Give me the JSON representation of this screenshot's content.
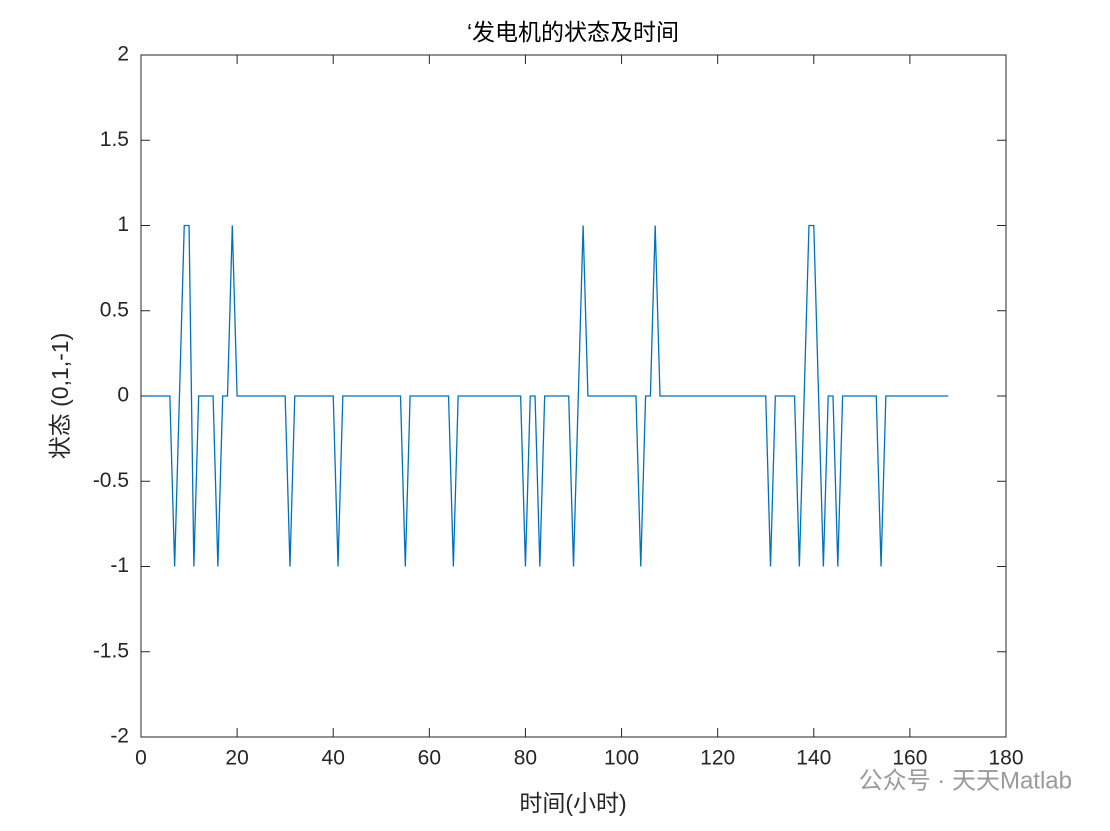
{
  "chart_data": {
    "type": "line",
    "title": "‘发电机的状态及时间",
    "xlabel": "时间(小时)",
    "ylabel": "状态 (0,1,-1)",
    "watermark": "公众号 · 天天Matlab",
    "x": [
      1,
      2,
      3,
      4,
      5,
      6,
      7,
      8,
      9,
      10,
      11,
      12,
      13,
      14,
      15,
      16,
      17,
      18,
      19,
      20,
      21,
      22,
      23,
      24,
      25,
      26,
      27,
      28,
      29,
      30,
      31,
      32,
      33,
      34,
      35,
      36,
      37,
      38,
      39,
      40,
      41,
      42,
      43,
      44,
      45,
      46,
      47,
      48,
      49,
      50,
      51,
      52,
      53,
      54,
      55,
      56,
      57,
      58,
      59,
      60,
      61,
      62,
      63,
      64,
      65,
      66,
      67,
      68,
      69,
      70,
      71,
      72,
      73,
      74,
      75,
      76,
      77,
      78,
      79,
      80,
      81,
      82,
      83,
      84,
      85,
      86,
      87,
      88,
      89,
      90,
      91,
      92,
      93,
      94,
      95,
      96,
      97,
      98,
      99,
      100,
      101,
      102,
      103,
      104,
      105,
      106,
      107,
      108,
      109,
      110,
      111,
      112,
      113,
      114,
      115,
      116,
      117,
      118,
      119,
      120,
      121,
      122,
      123,
      124,
      125,
      126,
      127,
      128,
      129,
      130,
      131,
      132,
      133,
      134,
      135,
      136,
      137,
      138,
      139,
      140,
      141,
      142,
      143,
      144,
      145,
      146,
      147,
      148,
      149,
      150,
      151,
      152,
      153,
      154,
      155,
      156,
      157,
      158,
      159,
      160,
      161,
      162,
      163,
      164,
      165,
      166,
      167,
      168
    ],
    "series": [
      {
        "color": "#0072BD",
        "values": [
          0,
          0,
          0,
          0,
          0,
          0,
          -1,
          0,
          1,
          1,
          -1,
          0,
          0,
          0,
          0,
          -1,
          0,
          0,
          1,
          0,
          0,
          0,
          0,
          0,
          0,
          0,
          0,
          0,
          0,
          0,
          -1,
          0,
          0,
          0,
          0,
          0,
          0,
          0,
          0,
          0,
          -1,
          0,
          0,
          0,
          0,
          0,
          0,
          0,
          0,
          0,
          0,
          0,
          0,
          0,
          -1,
          0,
          0,
          0,
          0,
          0,
          0,
          0,
          0,
          0,
          -1,
          0,
          0,
          0,
          0,
          0,
          0,
          0,
          0,
          0,
          0,
          0,
          0,
          0,
          0,
          -1,
          0,
          0,
          -1,
          0,
          0,
          0,
          0,
          0,
          0,
          -1,
          0,
          1,
          0,
          0,
          0,
          0,
          0,
          0,
          0,
          0,
          0,
          0,
          0,
          -1,
          0,
          0,
          1,
          0,
          0,
          0,
          0,
          0,
          0,
          0,
          0,
          0,
          0,
          0,
          0,
          0,
          0,
          0,
          0,
          0,
          0,
          0,
          0,
          0,
          0,
          0,
          -1,
          0,
          0,
          0,
          0,
          0,
          -1,
          0,
          1,
          1,
          0,
          -1,
          0,
          0,
          -1,
          0,
          0,
          0,
          0,
          0,
          0,
          0,
          0,
          -1,
          0,
          0,
          0,
          0,
          0,
          0,
          0,
          0,
          0,
          0,
          0,
          0,
          0,
          0
        ]
      }
    ],
    "xlim": [
      0,
      180
    ],
    "xticks": [
      0,
      20,
      40,
      60,
      80,
      100,
      120,
      140,
      160,
      180
    ],
    "ylim": [
      -2,
      2
    ],
    "yticks": [
      -2,
      -1.5,
      -1,
      -0.5,
      0,
      0.5,
      1,
      1.5,
      2
    ]
  }
}
